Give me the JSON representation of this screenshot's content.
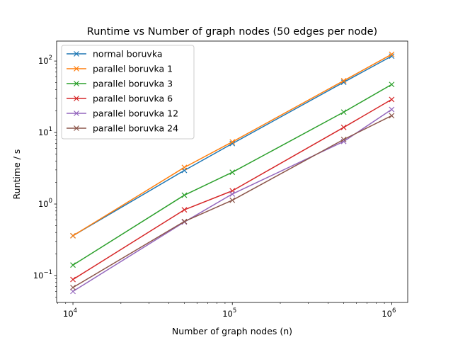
{
  "chart_data": {
    "type": "line",
    "title": "Runtime vs Number of graph nodes (50 edges per node)",
    "xlabel": "Number of graph nodes (n)",
    "ylabel": "Runtime / s",
    "xscale": "log",
    "yscale": "log",
    "xlim": [
      7900,
      1260000
    ],
    "ylim": [
      0.042,
      190
    ],
    "legend_position": "top-left",
    "x": [
      10000,
      50000,
      100000,
      500000,
      1000000
    ],
    "x_tick_labels": [
      {
        "base": "10",
        "exp": "4"
      },
      {
        "base": "10",
        "exp": "5"
      },
      {
        "base": "10",
        "exp": "6"
      }
    ],
    "y_tick_labels": [
      {
        "base": "10",
        "exp": "−1"
      },
      {
        "base": "10",
        "exp": "0"
      },
      {
        "base": "10",
        "exp": "1"
      },
      {
        "base": "10",
        "exp": "2"
      }
    ],
    "marker": "x",
    "series": [
      {
        "name": "normal boruvka",
        "color": "#1f77b4",
        "values": [
          0.36,
          2.95,
          7.0,
          50.5,
          117
        ]
      },
      {
        "name": "parallel boruvka 1",
        "color": "#ff7f0e",
        "values": [
          0.36,
          3.25,
          7.4,
          53.0,
          124
        ]
      },
      {
        "name": "parallel boruvka 3",
        "color": "#2ca02c",
        "values": [
          0.14,
          1.33,
          2.78,
          19.3,
          47
        ]
      },
      {
        "name": "parallel boruvka 6",
        "color": "#d62728",
        "values": [
          0.088,
          0.83,
          1.53,
          11.8,
          29
        ]
      },
      {
        "name": "parallel boruvka 12",
        "color": "#9467bd",
        "values": [
          0.06,
          0.56,
          1.38,
          7.5,
          21
        ]
      },
      {
        "name": "parallel boruvka 24",
        "color": "#8c564b",
        "values": [
          0.068,
          0.57,
          1.13,
          8.0,
          17.2
        ]
      }
    ]
  }
}
